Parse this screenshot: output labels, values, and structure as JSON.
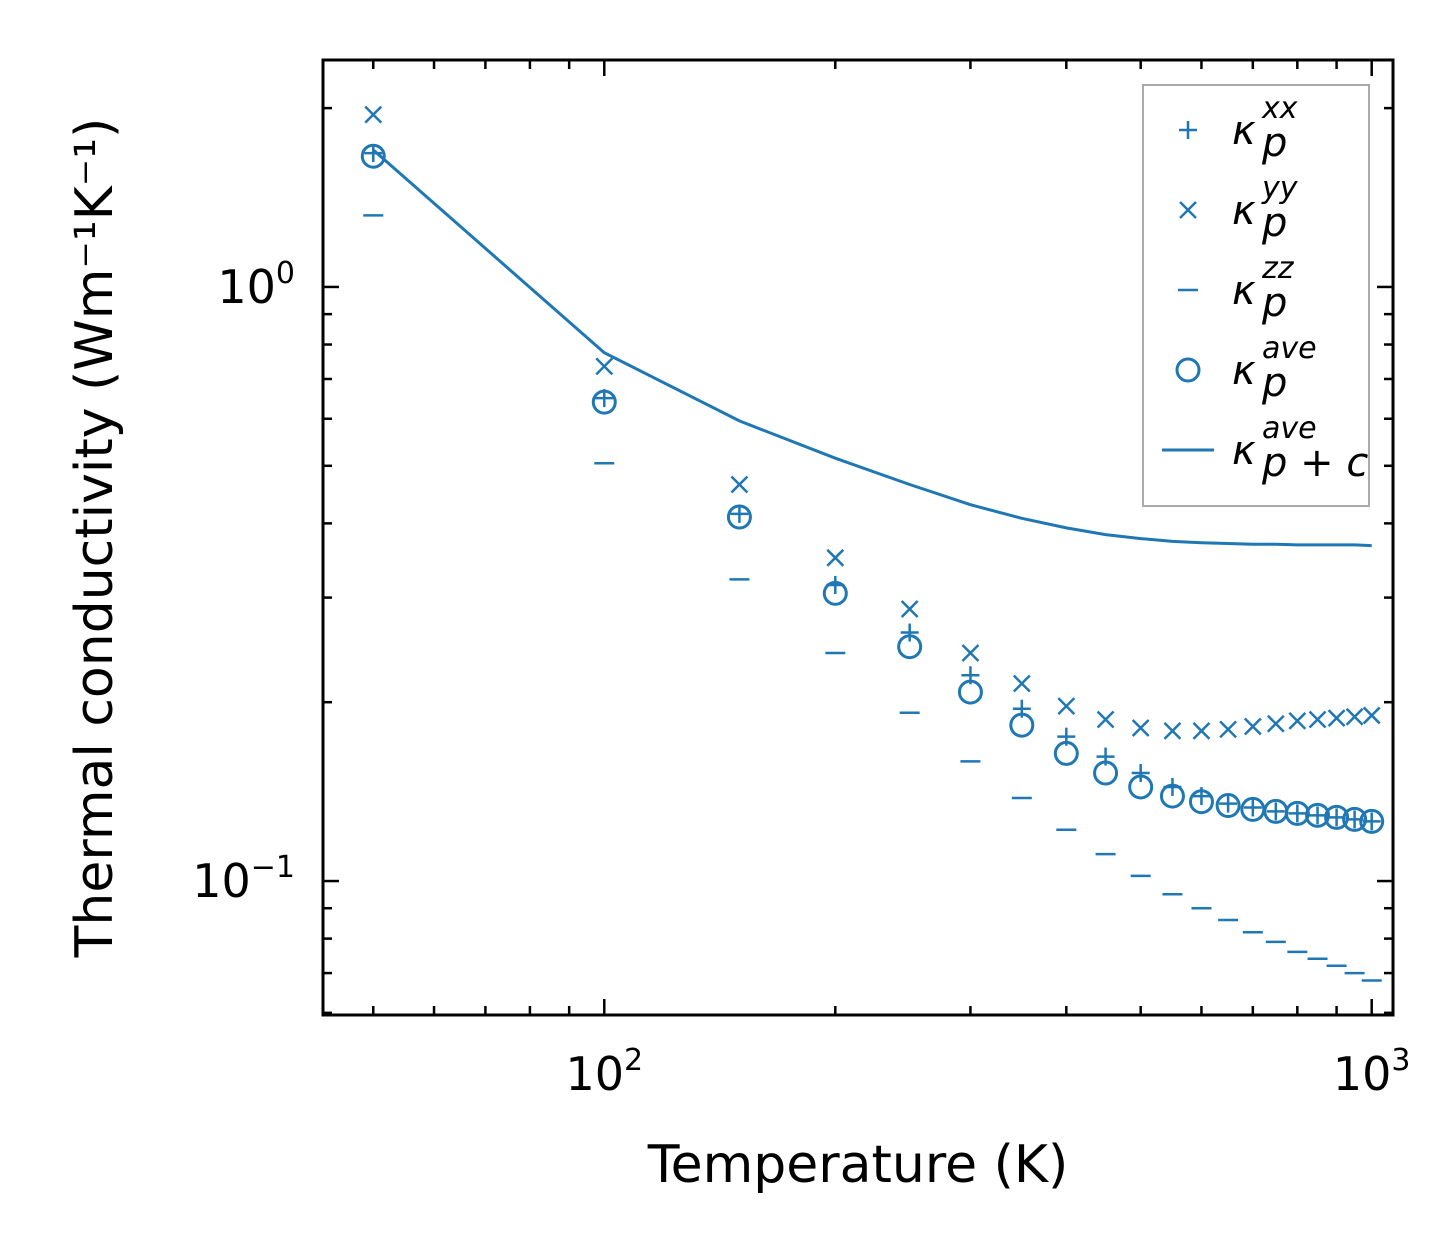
{
  "chart_data": {
    "type": "scatter",
    "title": "",
    "xlabel": "Temperature (K)",
    "ylabel": "Thermal conductivity (Wm⁻¹K⁻¹)",
    "xscale": "log",
    "yscale": "log",
    "xlim": [
      43,
      1066
    ],
    "ylim": [
      0.0595,
      2.41
    ],
    "grid": false,
    "legend_position": "top-right",
    "color": "#1f77b4",
    "x_ticks": [
      {
        "value": 100,
        "base": "10",
        "exp": "2"
      },
      {
        "value": 1000,
        "base": "10",
        "exp": "3"
      }
    ],
    "y_ticks": [
      {
        "value": 0.1,
        "base": "10",
        "exp": "−1"
      },
      {
        "value": 1,
        "base": "10",
        "exp": "0"
      }
    ],
    "x": [
      50,
      100,
      150,
      200,
      250,
      300,
      350,
      400,
      450,
      500,
      550,
      600,
      650,
      700,
      750,
      800,
      850,
      900,
      950,
      1000
    ],
    "series": [
      {
        "name": "kappa_p^xx",
        "label_base": "κ",
        "label_sub": "p",
        "label_sup": "xx",
        "marker": "plus",
        "values": [
          1.68,
          0.65,
          0.415,
          0.315,
          0.262,
          0.222,
          0.195,
          0.175,
          0.162,
          0.152,
          0.144,
          0.139,
          0.135,
          0.133,
          0.131,
          0.13,
          0.129,
          0.128,
          0.127,
          0.126
        ]
      },
      {
        "name": "kappa_p^yy",
        "label_base": "κ",
        "label_sub": "p",
        "label_sup": "yy",
        "marker": "x",
        "values": [
          1.95,
          0.735,
          0.465,
          0.35,
          0.287,
          0.242,
          0.215,
          0.197,
          0.187,
          0.181,
          0.179,
          0.179,
          0.18,
          0.182,
          0.184,
          0.186,
          0.187,
          0.188,
          0.189,
          0.19
        ]
      },
      {
        "name": "kappa_p^zz",
        "label_base": "κ",
        "label_sub": "p",
        "label_sup": "zz",
        "marker": "hline",
        "values": [
          1.32,
          0.505,
          0.322,
          0.242,
          0.192,
          0.159,
          0.138,
          0.122,
          0.111,
          0.102,
          0.095,
          0.09,
          0.086,
          0.082,
          0.079,
          0.076,
          0.074,
          0.072,
          0.07,
          0.068
        ]
      },
      {
        "name": "kappa_p^ave",
        "label_base": "κ",
        "label_sub": "p",
        "label_sup": "ave",
        "marker": "circle",
        "values": [
          1.66,
          0.64,
          0.41,
          0.305,
          0.248,
          0.208,
          0.183,
          0.164,
          0.152,
          0.144,
          0.139,
          0.136,
          0.134,
          0.132,
          0.131,
          0.13,
          0.129,
          0.128,
          0.127,
          0.126
        ]
      },
      {
        "name": "kappa_p+c^ave",
        "label_base": "κ",
        "label_sub": "p + c",
        "label_sup": "ave",
        "marker": "line",
        "values": [
          1.7,
          0.775,
          0.595,
          0.515,
          0.465,
          0.43,
          0.408,
          0.393,
          0.383,
          0.377,
          0.373,
          0.371,
          0.37,
          0.369,
          0.369,
          0.368,
          0.368,
          0.368,
          0.368,
          0.367
        ]
      }
    ]
  }
}
